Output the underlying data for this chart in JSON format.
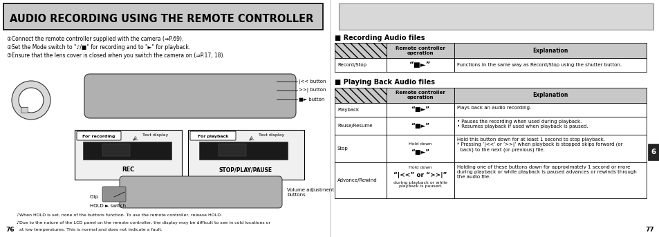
{
  "title": "AUDIO RECORDING USING THE REMOTE CONTROLLER",
  "bg_color": "#ffffff",
  "left_instructions": [
    "①Connect the remote controller supplied with the camera (⇒P.69).",
    "②Set the Mode switch to \"♪/■\" for recording and to \"►\" for playback.",
    "③Ensure that the lens cover is closed when you switch the camera on (⇒P.17, 18)."
  ],
  "button_labels": [
    "|<< button",
    ">>| button",
    "■► button"
  ],
  "rec_label": "For recording",
  "text_display_label": "Text display",
  "rec_bottom": "REC",
  "playback_label": "For playback",
  "text_display_label2": "Text display",
  "playback_bottom": "STOP/PLAY/PAUSE",
  "clip_label": "Clip",
  "hold_label": "HOLD ► switch",
  "volume_label": "Volume adjustment\nbuttons",
  "note1": "♪When HOLD is set, none of the buttons function. To use the remote controller, release HOLD.",
  "note2": "♪Due to the nature of the LCD panel on the remote controller, the display may be difficult to see in cold locations or",
  "note3": "  at low temperatures. This is normal and does not indicate a fault.",
  "page_left": "76",
  "page_right": "77",
  "section_num": "6",
  "rec_audio_title": "■ Recording Audio files",
  "play_audio_title": "■ Playing Back Audio files",
  "header_bg": "#c8c8c8",
  "table_border": "#000000"
}
